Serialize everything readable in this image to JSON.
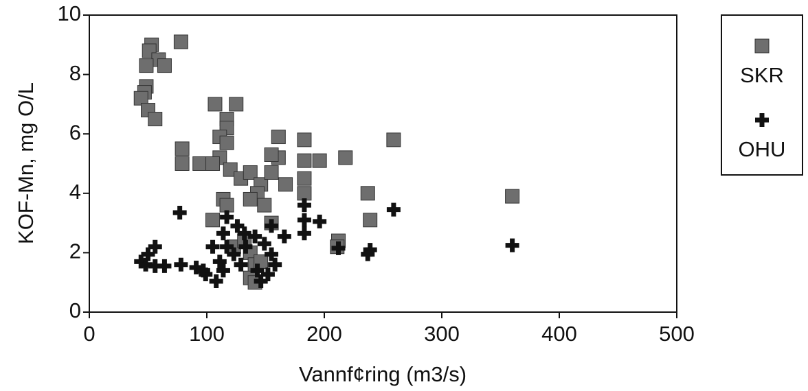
{
  "chart_data": {
    "type": "scatter",
    "x_label": "Vannf¢ring (m3/s)",
    "y_label": "KOF-Mn, mg O/L",
    "xlim": [
      0,
      500
    ],
    "xticks": [
      0,
      100,
      200,
      300,
      400,
      500
    ],
    "ylim": [
      0,
      10
    ],
    "yticks": [
      0,
      2,
      4,
      6,
      8,
      10
    ],
    "grid": false,
    "legend": "outside right",
    "series": [
      {
        "name": "SKR",
        "color": "#6e6e6e",
        "marker": "square",
        "x": [
          53,
          51,
          59,
          64,
          48.5,
          78,
          48.5,
          47,
          44,
          50,
          56,
          79,
          79,
          94,
          107,
          125,
          117,
          117,
          111,
          117,
          111,
          120,
          105,
          129,
          137,
          146,
          155,
          161,
          161,
          155,
          167,
          143,
          137,
          149,
          114,
          105,
          117,
          183,
          183,
          196,
          183,
          183,
          218,
          259,
          237,
          239,
          212,
          211,
          360,
          155,
          137,
          141,
          137,
          141,
          146,
          123,
          132
        ],
        "y": [
          9.0,
          8.8,
          8.5,
          8.3,
          8.3,
          9.1,
          7.6,
          7.4,
          7.2,
          6.8,
          6.5,
          5.5,
          5.0,
          5.0,
          7.0,
          7.0,
          6.5,
          6.2,
          5.9,
          5.7,
          5.2,
          4.8,
          5.0,
          4.5,
          4.7,
          4.3,
          4.7,
          5.2,
          5.9,
          5.3,
          4.3,
          4.0,
          3.8,
          3.6,
          3.8,
          3.1,
          3.6,
          5.8,
          5.1,
          5.1,
          4.5,
          4.0,
          5.2,
          5.8,
          4.0,
          3.1,
          2.4,
          2.2,
          3.9,
          3.0,
          2.0,
          1.6,
          1.15,
          1.0,
          1.7,
          2.2,
          2.4
        ]
      },
      {
        "name": "OHU",
        "color": "#111111",
        "marker": "cross",
        "x": [
          44,
          50,
          56,
          48,
          56,
          64,
          78,
          77,
          91,
          99,
          108,
          114,
          111,
          117,
          114,
          117,
          126,
          132,
          123,
          129,
          133,
          141,
          149,
          155,
          158,
          152,
          146,
          143,
          155,
          166,
          183,
          183,
          183,
          196,
          212,
          239,
          237,
          259,
          360,
          105,
          97
        ],
        "y": [
          1.7,
          1.95,
          2.2,
          1.6,
          1.55,
          1.55,
          1.6,
          3.35,
          1.5,
          1.27,
          1.04,
          1.4,
          1.7,
          2.2,
          2.65,
          3.2,
          2.9,
          2.65,
          1.95,
          1.6,
          2.2,
          2.55,
          2.3,
          1.95,
          1.6,
          1.27,
          1.04,
          1.4,
          2.9,
          2.55,
          3.6,
          3.1,
          2.65,
          3.05,
          2.15,
          2.1,
          1.95,
          3.45,
          2.25,
          2.2,
          1.4
        ]
      }
    ]
  }
}
